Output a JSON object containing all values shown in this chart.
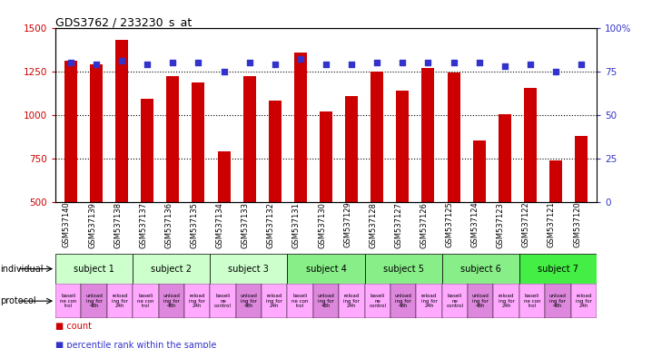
{
  "title": "GDS3762 / 233230_s_at",
  "samples": [
    "GSM537140",
    "GSM537139",
    "GSM537138",
    "GSM537137",
    "GSM537136",
    "GSM537135",
    "GSM537134",
    "GSM537133",
    "GSM537132",
    "GSM537131",
    "GSM537130",
    "GSM537129",
    "GSM537128",
    "GSM537127",
    "GSM537126",
    "GSM537125",
    "GSM537124",
    "GSM537123",
    "GSM537122",
    "GSM537121",
    "GSM537120"
  ],
  "counts": [
    1310,
    1290,
    1430,
    1090,
    1220,
    1185,
    790,
    1220,
    1080,
    1360,
    1020,
    1110,
    1250,
    1140,
    1270,
    1245,
    855,
    1005,
    1155,
    740,
    880
  ],
  "percentile_ranks": [
    80,
    79,
    81,
    79,
    80,
    80,
    75,
    80,
    79,
    82,
    79,
    79,
    80,
    80,
    80,
    80,
    80,
    78,
    79,
    75,
    79
  ],
  "bar_color": "#cc0000",
  "dot_color": "#3333cc",
  "ylim_left": [
    500,
    1500
  ],
  "ylim_right": [
    0,
    100
  ],
  "yticks_left": [
    500,
    750,
    1000,
    1250,
    1500
  ],
  "yticks_right": [
    0,
    25,
    50,
    75,
    100
  ],
  "ytick_labels_right": [
    "0",
    "25",
    "50",
    "75",
    "100%"
  ],
  "grid_values": [
    750,
    1000,
    1250
  ],
  "subjects": [
    {
      "label": "subject 1",
      "start": 0,
      "end": 3,
      "color": "#ccffcc"
    },
    {
      "label": "subject 2",
      "start": 3,
      "end": 6,
      "color": "#ccffcc"
    },
    {
      "label": "subject 3",
      "start": 6,
      "end": 9,
      "color": "#ccffcc"
    },
    {
      "label": "subject 4",
      "start": 9,
      "end": 12,
      "color": "#88ee88"
    },
    {
      "label": "subject 5",
      "start": 12,
      "end": 15,
      "color": "#88ee88"
    },
    {
      "label": "subject 6",
      "start": 15,
      "end": 18,
      "color": "#88ee88"
    },
    {
      "label": "subject 7",
      "start": 18,
      "end": 21,
      "color": "#44ee44"
    }
  ],
  "protocols": [
    {
      "label": "baseli\nne con\ntrol",
      "color": "#ffaaff"
    },
    {
      "label": "unload\ning for\n48h",
      "color": "#dd88dd"
    },
    {
      "label": "reload\ning for\n24h",
      "color": "#ffaaff"
    },
    {
      "label": "baseli\nne con\ntrol",
      "color": "#ffaaff"
    },
    {
      "label": "unload\ning for\n48h",
      "color": "#dd88dd"
    },
    {
      "label": "reload\ning for\n24h",
      "color": "#ffaaff"
    },
    {
      "label": "baseli\nne\ncontrol",
      "color": "#ffaaff"
    },
    {
      "label": "unload\ning for\n48h",
      "color": "#dd88dd"
    },
    {
      "label": "reload\ning for\n24h",
      "color": "#ffaaff"
    },
    {
      "label": "baseli\nne con\ntrol",
      "color": "#ffaaff"
    },
    {
      "label": "unload\ning for\n48h",
      "color": "#dd88dd"
    },
    {
      "label": "reload\ning for\n24h",
      "color": "#ffaaff"
    },
    {
      "label": "baseli\nne\ncontrol",
      "color": "#ffaaff"
    },
    {
      "label": "unload\ning for\n48h",
      "color": "#dd88dd"
    },
    {
      "label": "reload\ning for\n24h",
      "color": "#ffaaff"
    },
    {
      "label": "baseli\nne\ncontrol",
      "color": "#ffaaff"
    },
    {
      "label": "unload\ning for\n48h",
      "color": "#dd88dd"
    },
    {
      "label": "reload\ning for\n24h",
      "color": "#ffaaff"
    },
    {
      "label": "baseli\nne con\ntrol",
      "color": "#ffaaff"
    },
    {
      "label": "unload\ning for\n48h",
      "color": "#dd88dd"
    },
    {
      "label": "reload\ning for\n24h",
      "color": "#ffaaff"
    }
  ],
  "individual_label": "individual",
  "protocol_label": "protocol",
  "legend_count_color": "#cc0000",
  "legend_dot_color": "#3333cc",
  "bg_color": "#ffffff",
  "tick_label_color_left": "#cc0000",
  "tick_label_color_right": "#3333cc"
}
